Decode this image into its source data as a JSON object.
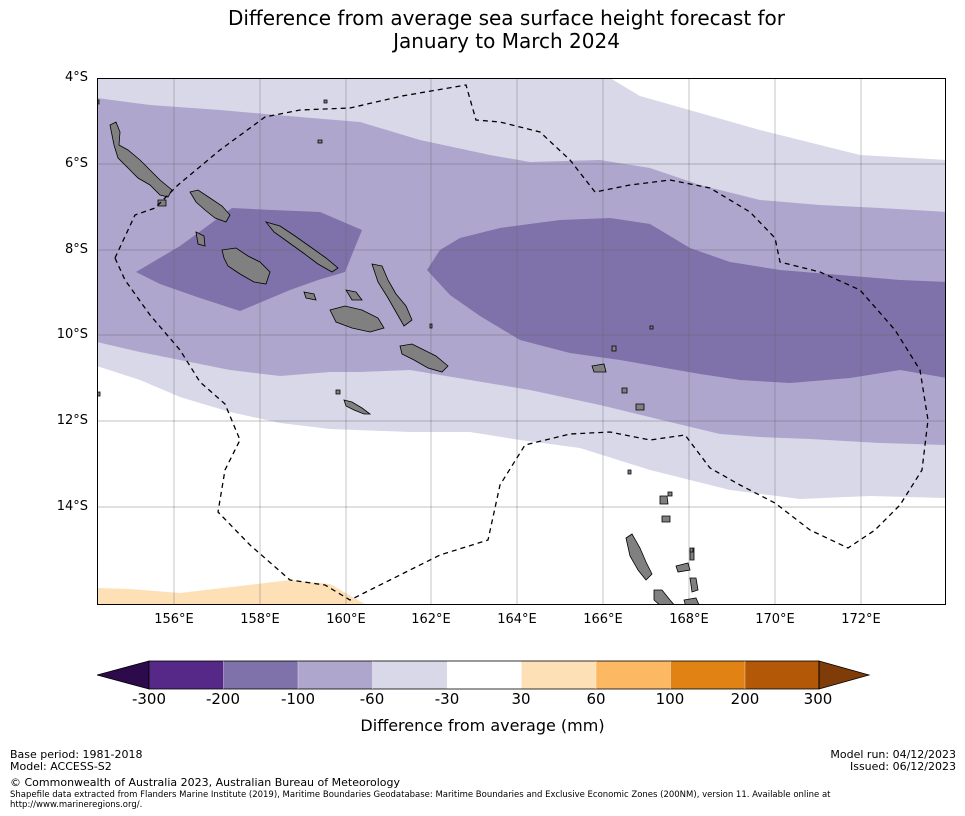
{
  "title": {
    "line1": "Difference from average sea surface height forecast for",
    "line2": "January to March 2024"
  },
  "axes": {
    "lat_labels": [
      "4°S",
      "6°S",
      "8°S",
      "10°S",
      "12°S",
      "14°S"
    ],
    "lon_labels": [
      "156°E",
      "158°E",
      "160°E",
      "162°E",
      "164°E",
      "166°E",
      "168°E",
      "170°E",
      "172°E"
    ]
  },
  "colorbar": {
    "label": "Difference from average (mm)",
    "ticks": [
      "-300",
      "-200",
      "-100",
      "-60",
      "-30",
      "30",
      "60",
      "100",
      "200",
      "300"
    ],
    "colors": [
      "#2d0a4b",
      "#562988",
      "#7f71a9",
      "#aea6cd",
      "#d8d8e9",
      "#ffffff",
      "#fee0b6",
      "#fdb863",
      "#e08214",
      "#b35806",
      "#7f3b08"
    ]
  },
  "footer": {
    "base_period": "Base period: 1981-2018",
    "model": "Model: ACCESS-S2",
    "model_run": "Model run: 04/12/2023",
    "issued": "Issued: 06/12/2023",
    "copyright": "© Commonwealth of Australia 2023, Australian Bureau of Meteorology",
    "shapefile_line1": "Shapefile data extracted from Flanders Marine Institute (2019), Maritime Boundaries Geodatabase: Maritime Boundaries and Exclusive Economic Zones (200NM), version 11. Available online at",
    "shapefile_line2": "http://www.marineregions.org/."
  }
}
